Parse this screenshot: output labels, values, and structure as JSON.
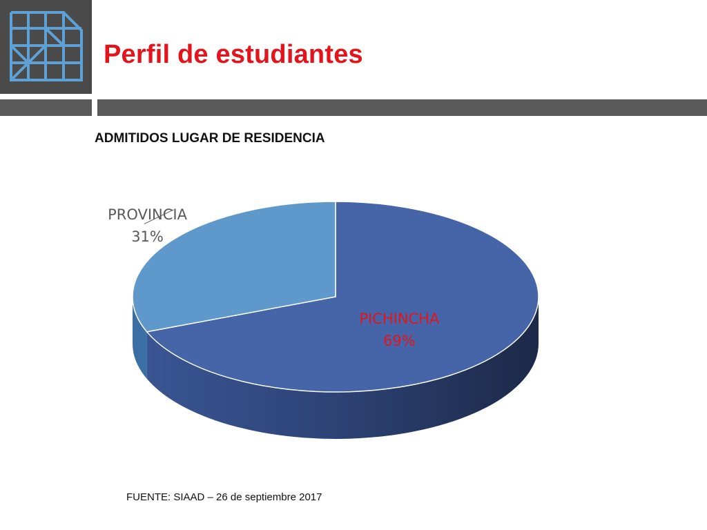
{
  "header": {
    "title": "Perfil de estudiantes",
    "logo_icon": "grid-sheet-icon"
  },
  "chart_data": {
    "type": "pie",
    "title": "ADMITIDOS LUGAR DE RESIDENCIA",
    "style": "3d",
    "slices": [
      {
        "label": "PICHINCHA",
        "percent_label": "69%",
        "value": 69,
        "color": "#4664a8",
        "label_color": "#e3141b"
      },
      {
        "label": "PROVINCIA",
        "percent_label": "31%",
        "value": 31,
        "color": "#5f99cc",
        "label_color": "#595959"
      }
    ]
  },
  "footer": {
    "source": "FUENTE: SIAAD – 26 de septiembre 2017"
  }
}
